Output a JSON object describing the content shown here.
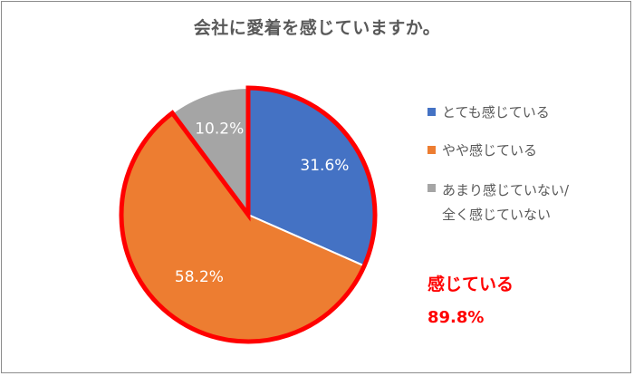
{
  "title": "会社に愛着を感じていますか。",
  "chart_data": {
    "type": "pie",
    "title": "会社に愛着を感じていますか。",
    "slices": [
      {
        "label": "とても感じている",
        "value": 31.6,
        "display": "31.6%",
        "color": "#4472c4"
      },
      {
        "label": "やや感じている",
        "value": 58.2,
        "display": "58.2%",
        "color": "#ed7d31"
      },
      {
        "label": "あまり感じていない/\n全く感じていない",
        "value": 10.2,
        "display": "10.2%",
        "color": "#a5a5a5"
      }
    ],
    "highlight_color": "#ff0000",
    "legend_position": "right"
  },
  "callout": {
    "label": "感じている",
    "value": "89.8%"
  }
}
